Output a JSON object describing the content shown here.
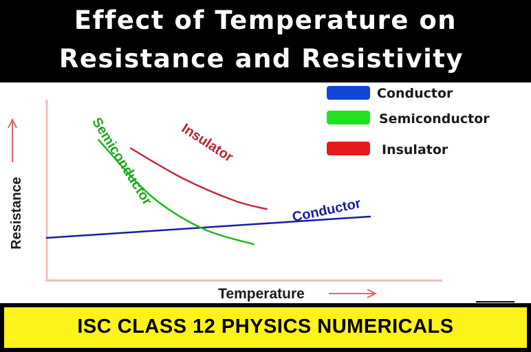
{
  "header": {
    "title_line1": "Effect of Temperature on",
    "title_line2": "Resistance and Resistivity"
  },
  "footer": {
    "banner": "ISC CLASS 12 PHYSICS NUMERICALS"
  },
  "chart_data": {
    "type": "line",
    "title": "Effect of Temperature on Resistance and Resistivity",
    "xlabel": "Temperature",
    "ylabel": "Resistance",
    "grid": false,
    "legend_position": "top-right",
    "series": [
      {
        "name": "Conductor",
        "color": "#1a1aa8",
        "legend_color": "#1245d8",
        "x": [
          0.0,
          10.0
        ],
        "y": [
          1.0,
          2.0
        ]
      },
      {
        "name": "Semiconductor",
        "color": "#1fb81f",
        "legend_color": "#1fe31f",
        "x": [
          1.6,
          3.2,
          4.8,
          6.4
        ],
        "y": [
          5.6,
          3.0,
          1.45,
          0.7
        ]
      },
      {
        "name": "Insulator",
        "color": "#c42a3a",
        "legend_color": "#e31b1b",
        "x": [
          2.6,
          4.2,
          5.8,
          6.8
        ],
        "y": [
          5.2,
          3.8,
          2.75,
          2.35
        ]
      }
    ],
    "xlim": [
      0,
      10
    ],
    "ylim": [
      0,
      6
    ],
    "annotations": [
      "Semiconductor",
      "Insulator",
      "Conductor"
    ]
  }
}
